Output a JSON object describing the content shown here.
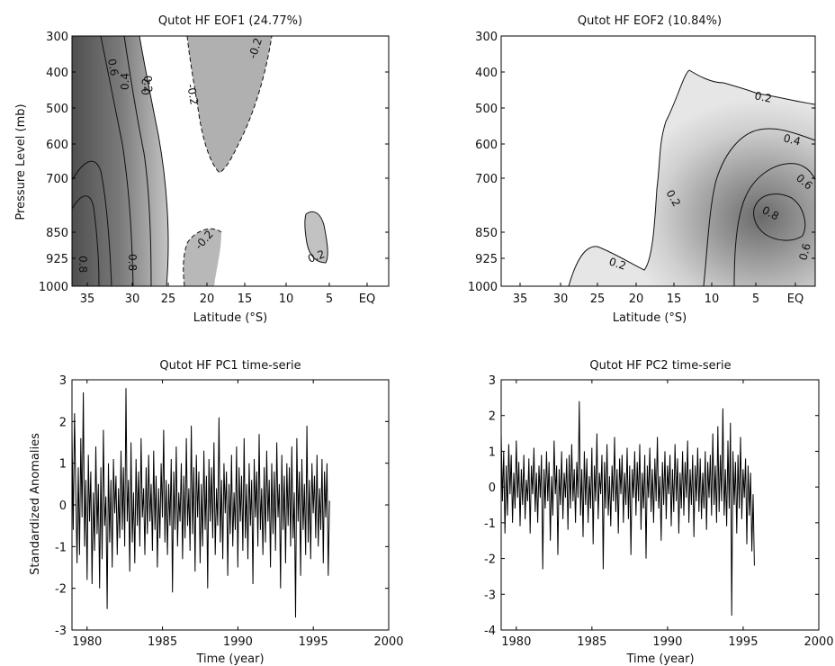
{
  "chart_data": [
    {
      "type": "heatmap",
      "subtype": "contour",
      "title": "Qutot HF EOF1 (24.77%)",
      "xlabel": "Latitude (°S)",
      "ylabel": "Pressure Level (mb)",
      "x_ticks": [
        "35",
        "30",
        "25",
        "20",
        "15",
        "10",
        "5",
        "EQ"
      ],
      "y_ticks": [
        "300",
        "400",
        "500",
        "600",
        "700",
        "850",
        "925",
        "1000"
      ],
      "contour_levels": [
        -0.2,
        0.2,
        0.4,
        0.6,
        0.8
      ],
      "contour_labels": [
        "0.6",
        "0.4",
        "0.2",
        "0.2",
        "-0.2",
        "-0.2",
        "0.8",
        "0.8",
        "-0.2",
        "0.2"
      ],
      "shading": "grayscale, darker = larger positive loading, light gray = negative loading",
      "grid": false
    },
    {
      "type": "heatmap",
      "subtype": "contour",
      "title": "Qutot HF EOF2 (10.84%)",
      "xlabel": "Latitude (°S)",
      "ylabel": "",
      "x_ticks": [
        "35",
        "30",
        "25",
        "20",
        "15",
        "10",
        "5",
        "EQ"
      ],
      "y_ticks": [
        "300",
        "400",
        "500",
        "600",
        "700",
        "850",
        "925",
        "1000"
      ],
      "contour_levels": [
        0.2,
        0.4,
        0.6,
        0.8
      ],
      "contour_labels": [
        "0.2",
        "0.4",
        "0.6",
        "0.8",
        "0.2",
        "0.2",
        "0.6"
      ],
      "shading": "grayscale, darker = larger positive loading",
      "grid": false
    },
    {
      "type": "line",
      "title": "Qutot HF PC1 time-serie",
      "xlabel": "Time (year)",
      "ylabel": "Standardized Anomalies",
      "x_ticks": [
        "1980",
        "1985",
        "1990",
        "1995",
        "2000"
      ],
      "y_ticks": [
        "-3",
        "-2",
        "-1",
        "0",
        "1",
        "2",
        "3"
      ],
      "xlim": [
        1979,
        2000
      ],
      "ylim": [
        -3,
        3
      ],
      "series": [
        {
          "x_start": 1979.0,
          "x_step": 0.0833,
          "values": [
            1.8,
            -0.6,
            2.2,
            0.4,
            -1.4,
            0.9,
            -1.2,
            1.6,
            -0.3,
            2.7,
            -1.0,
            0.6,
            -1.8,
            1.2,
            -0.4,
            0.8,
            -1.9,
            0.3,
            -1.1,
            1.4,
            -0.7,
            0.5,
            -2.0,
            0.9,
            -1.3,
            1.8,
            -0.5,
            0.2,
            -2.5,
            1.0,
            -0.9,
            0.6,
            -1.5,
            1.1,
            -0.2,
            0.7,
            -1.2,
            0.4,
            -0.8,
            1.3,
            -0.6,
            0.9,
            -1.0,
            2.8,
            -0.4,
            0.6,
            -1.6,
            1.5,
            -0.9,
            0.3,
            -1.4,
            1.1,
            -0.5,
            0.8,
            -1.0,
            1.6,
            -0.3,
            0.4,
            -1.2,
            0.9,
            -0.7,
            1.2,
            -0.4,
            0.5,
            -1.1,
            1.3,
            -0.6,
            0.7,
            -1.5,
            0.4,
            -0.8,
            1.0,
            -0.3,
            1.8,
            -0.9,
            0.6,
            -1.2,
            0.5,
            -0.5,
            1.1,
            -2.1,
            0.8,
            -0.6,
            1.4,
            -1.0,
            0.3,
            -0.4,
            1.0,
            -1.3,
            0.7,
            -0.8,
            1.6,
            -0.5,
            0.4,
            -1.1,
            1.9,
            -0.7,
            0.9,
            -1.6,
            1.2,
            -0.3,
            0.8,
            -1.4,
            0.5,
            -1.0,
            1.3,
            -0.6,
            0.7,
            -2.0,
            1.1,
            -0.4,
            0.9,
            -0.8,
            1.5,
            -1.2,
            0.4,
            -0.5,
            2.1,
            -0.9,
            0.6,
            -1.3,
            1.0,
            -0.2,
            0.8,
            -1.7,
            0.5,
            -0.7,
            1.2,
            -1.0,
            0.3,
            -0.6,
            1.4,
            -1.5,
            0.9,
            -0.4,
            0.7,
            -1.1,
            1.6,
            -0.8,
            0.5,
            -1.3,
            1.0,
            -0.5,
            0.6,
            -1.9,
            1.1,
            -0.3,
            0.8,
            -1.0,
            1.7,
            -0.6,
            0.4,
            -1.2,
            0.9,
            -0.9,
            1.3,
            -0.4,
            0.6,
            -1.5,
            1.0,
            -0.7,
            0.8,
            -1.1,
            1.5,
            -0.3,
            0.5,
            -2.0,
            1.2,
            -0.6,
            0.7,
            -1.4,
            1.0,
            -0.5,
            0.9,
            -1.0,
            1.4,
            -0.8,
            0.3,
            -2.7,
            1.6,
            -0.4,
            0.8,
            -1.7,
            1.1,
            -0.6,
            0.5,
            -1.2,
            1.9,
            -0.9,
            0.6,
            -1.3,
            1.0,
            -0.2,
            0.7,
            -0.8,
            1.2,
            -1.0,
            0.4,
            -0.6,
            1.1,
            -1.4,
            0.8,
            -0.3,
            1.0,
            -1.7,
            0.1
          ]
        }
      ],
      "grid": false
    },
    {
      "type": "line",
      "title": "Qutot HF PC2 time-serie",
      "xlabel": "Time (year)",
      "ylabel": "",
      "x_ticks": [
        "1980",
        "1985",
        "1990",
        "1995",
        "2000"
      ],
      "y_ticks": [
        "-4",
        "-3",
        "-2",
        "-1",
        "0",
        "1",
        "2",
        "3"
      ],
      "xlim": [
        1979,
        2000
      ],
      "ylim": [
        -4,
        3
      ],
      "series": [
        {
          "x_start": 1979.0,
          "x_step": 0.0833,
          "values": [
            1.5,
            -0.4,
            1.0,
            -1.3,
            0.6,
            -0.8,
            1.2,
            -0.2,
            0.9,
            -1.0,
            0.4,
            -0.6,
            1.3,
            -0.3,
            0.7,
            -1.1,
            0.5,
            -0.5,
            0.9,
            -0.9,
            0.2,
            -0.4,
            0.8,
            -1.3,
            0.6,
            -0.2,
            1.1,
            -0.7,
            0.4,
            -1.0,
            0.6,
            -0.3,
            0.9,
            -2.3,
            0.5,
            -0.6,
            1.0,
            -0.4,
            0.7,
            -1.5,
            0.3,
            -0.8,
            1.3,
            -0.2,
            0.6,
            -1.9,
            0.5,
            -0.5,
            1.0,
            -0.9,
            0.4,
            -0.3,
            0.8,
            -1.2,
            0.9,
            -0.6,
            1.2,
            -0.4,
            0.5,
            -1.0,
            0.7,
            -0.3,
            2.4,
            -0.8,
            0.5,
            -1.4,
            1.0,
            -0.5,
            0.8,
            -1.0,
            0.3,
            -0.6,
            1.1,
            -1.6,
            0.6,
            -0.4,
            1.5,
            -0.9,
            0.4,
            -0.2,
            0.9,
            -2.3,
            0.7,
            -0.6,
            1.2,
            -0.8,
            0.3,
            -1.1,
            0.6,
            -0.4,
            1.4,
            -0.7,
            0.5,
            -1.3,
            0.8,
            -0.2,
            0.9,
            -1.0,
            0.4,
            -0.5,
            1.1,
            -0.9,
            0.6,
            -1.9,
            0.5,
            -0.3,
            1.0,
            -0.8,
            0.7,
            -0.4,
            1.2,
            -1.2,
            0.4,
            -0.6,
            0.9,
            -2.0,
            0.6,
            -0.3,
            1.1,
            -0.7,
            0.5,
            -1.0,
            0.8,
            -0.4,
            1.4,
            -0.6,
            0.3,
            -1.5,
            0.7,
            -0.5,
            1.0,
            -0.9,
            0.6,
            -0.2,
            0.9,
            -1.1,
            0.5,
            -0.7,
            1.2,
            -0.4,
            0.8,
            -1.3,
            0.4,
            -0.6,
            1.0,
            -0.8,
            0.7,
            -0.3,
            1.3,
            -1.0,
            0.5,
            -0.5,
            0.9,
            -1.4,
            0.6,
            -0.4,
            1.1,
            -0.7,
            0.8,
            -0.9,
            0.4,
            -0.6,
            1.0,
            -1.2,
            0.7,
            -0.3,
            0.9,
            -0.8,
            1.5,
            -0.5,
            0.6,
            -1.0,
            1.7,
            -0.7,
            0.9,
            -0.4,
            2.2,
            -0.8,
            0.5,
            -1.1,
            1.3,
            -0.6,
            1.8,
            -3.6,
            1.0,
            -0.5,
            0.7,
            -1.3,
            0.9,
            -0.6,
            1.4,
            -0.9,
            0.5,
            -0.3,
            0.8,
            -1.6,
            0.6,
            -0.8,
            0.4,
            -1.8,
            -0.2,
            -2.2
          ]
        }
      ],
      "grid": false
    }
  ]
}
